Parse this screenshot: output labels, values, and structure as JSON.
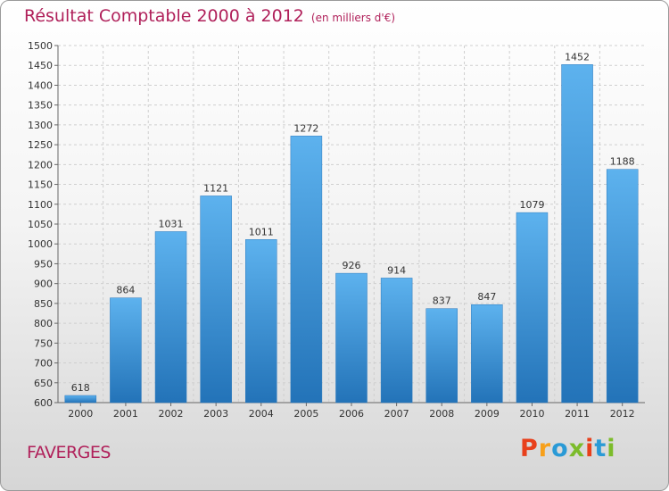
{
  "title": "Résultat Comptable 2000 à 2012",
  "unit_note": "(en milliers d'€)",
  "city": "FAVERGES",
  "logo": {
    "text": "Proxiti",
    "colors": [
      "#e8401c",
      "#f7a01a",
      "#2a9ad6",
      "#7cbc2b",
      "#e8401c",
      "#2a9ad6",
      "#7cbc2b"
    ]
  },
  "chart_data": {
    "type": "bar",
    "categories": [
      "2000",
      "2001",
      "2002",
      "2003",
      "2004",
      "2005",
      "2006",
      "2007",
      "2008",
      "2009",
      "2010",
      "2011",
      "2012"
    ],
    "values": [
      618,
      864,
      1031,
      1121,
      1011,
      1272,
      926,
      914,
      837,
      847,
      1079,
      1452,
      1188
    ],
    "ylim": [
      600,
      1500
    ],
    "yticks": [
      600,
      650,
      700,
      750,
      800,
      850,
      900,
      950,
      1000,
      1050,
      1100,
      1150,
      1200,
      1250,
      1300,
      1350,
      1400,
      1450,
      1500
    ],
    "grid": true,
    "bar_color": "#3a8fd6"
  }
}
